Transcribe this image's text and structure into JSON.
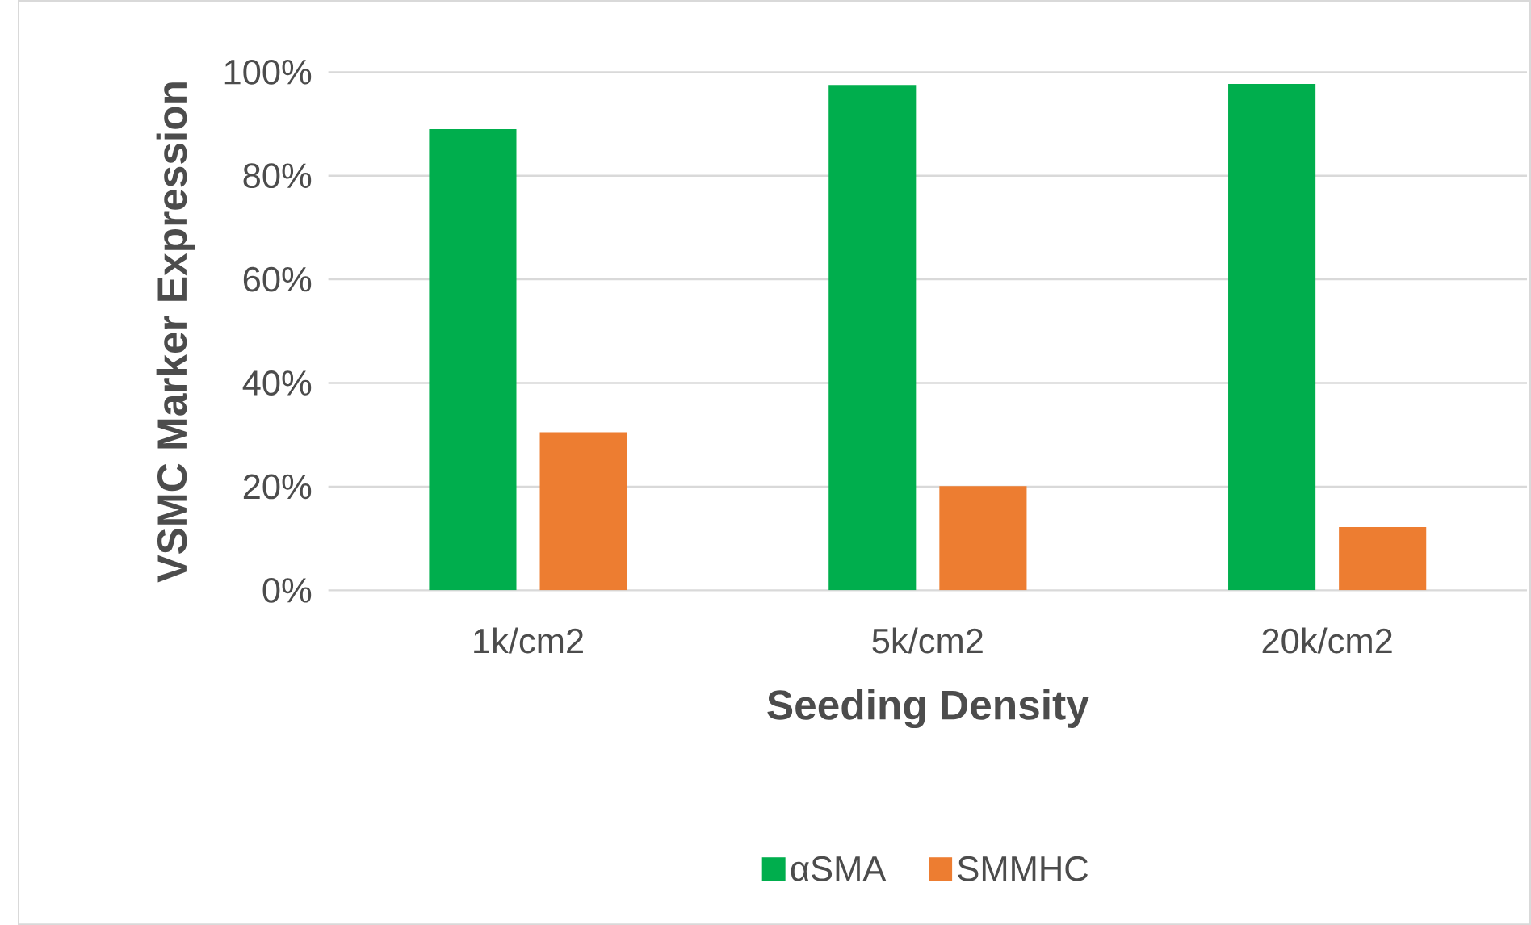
{
  "chart_data": {
    "type": "bar",
    "xlabel": "Seeding Density",
    "ylabel": "VSMC Marker Expression",
    "categories": [
      "1k/cm2",
      "5k/cm2",
      "20k/cm2"
    ],
    "series": [
      {
        "name": "αSMA",
        "color": "#00ae4d",
        "values": [
          89.0,
          97.5,
          97.7
        ]
      },
      {
        "name": "SMMHC",
        "color": "#ed7d31",
        "values": [
          30.5,
          20.1,
          12.2
        ]
      }
    ],
    "ylim": [
      0,
      100
    ],
    "yticks": [
      {
        "value": 0,
        "label": "0%"
      },
      {
        "value": 20,
        "label": "20%"
      },
      {
        "value": 40,
        "label": "40%"
      },
      {
        "value": 60,
        "label": "60%"
      },
      {
        "value": 80,
        "label": "80%"
      },
      {
        "value": 100,
        "label": "100%"
      }
    ],
    "grid": "y",
    "legend": "bottom"
  }
}
